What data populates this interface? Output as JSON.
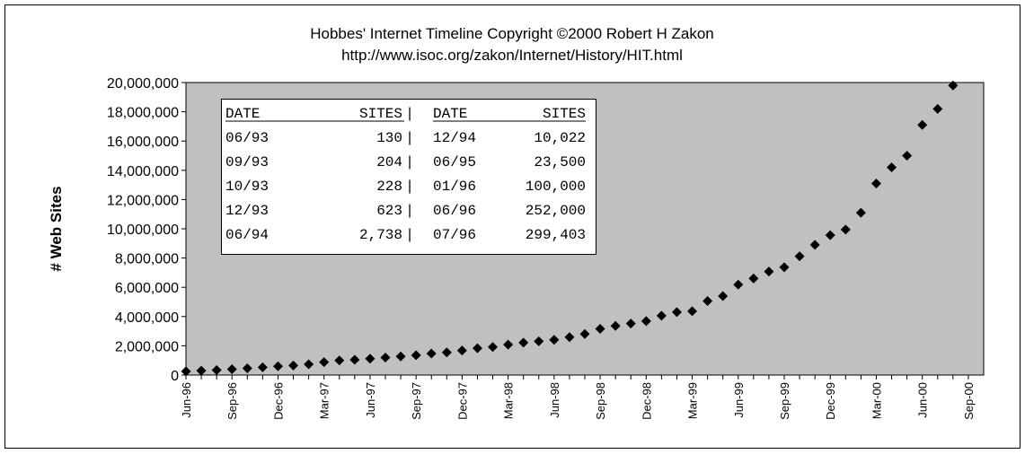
{
  "chart_data": {
    "type": "scatter",
    "title": "Hobbes' Internet Timeline Copyright ©2000 Robert H Zakon",
    "subtitle": "http://www.isoc.org/zakon/Internet/History/HIT.html",
    "y_label": "# Web Sites",
    "categories": [
      "Jun-96",
      null,
      null,
      "Sep-96",
      null,
      null,
      "Dec-96",
      null,
      null,
      "Mar-97",
      null,
      null,
      "Jun-97",
      null,
      null,
      "Sep-97",
      null,
      null,
      "Dec-97",
      null,
      null,
      "Mar-98",
      null,
      null,
      "Jun-98",
      null,
      null,
      "Sep-98",
      null,
      null,
      "Dec-98",
      null,
      null,
      "Mar-99",
      null,
      null,
      "Jun-99",
      null,
      null,
      "Sep-99",
      null,
      null,
      "Dec-99",
      null,
      null,
      "Mar-00",
      null,
      null,
      "Jun-00",
      null,
      null,
      "Sep-00"
    ],
    "values": [
      250000,
      300000,
      340000,
      400000,
      460000,
      530000,
      600000,
      650000,
      740000,
      880000,
      1000000,
      1040000,
      1120000,
      1200000,
      1270000,
      1360000,
      1470000,
      1550000,
      1680000,
      1830000,
      1920000,
      2080000,
      2220000,
      2310000,
      2410000,
      2590000,
      2810000,
      3160000,
      3360000,
      3520000,
      3690000,
      4060000,
      4300000,
      4360000,
      5060000,
      5400000,
      6180000,
      6600000,
      7080000,
      7370000,
      8120000,
      8900000,
      9560000,
      9950000,
      11100000,
      13100000,
      14200000,
      15000000,
      17100000,
      18200000,
      19800000,
      null
    ],
    "color": "#000000",
    "plot_background": "#c0c0c0",
    "ylim": [
      0,
      20000000
    ],
    "yticks": [
      0,
      {
        "value": 2000000,
        "label": "2,000,000"
      },
      {
        "value": 4000000,
        "label": "4,000,000"
      },
      {
        "value": 6000000,
        "label": "6,000,000"
      },
      {
        "value": 8000000,
        "label": "8,000,000"
      },
      {
        "value": 10000000,
        "label": "10,000,000"
      },
      {
        "value": 12000000,
        "label": "12,000,000"
      },
      {
        "value": 14000000,
        "label": "14,000,000"
      },
      {
        "value": 16000000,
        "label": "16,000,000"
      },
      {
        "value": 18000000,
        "label": "18,000,000"
      },
      {
        "value": 20000000,
        "label": "20,000,000"
      }
    ],
    "grid": false
  },
  "table": {
    "separator": "|",
    "columns": [
      "DATE",
      "SITES",
      "DATE",
      "SITES"
    ],
    "rows": [
      [
        "06/93",
        "130",
        "12/94",
        "10,022"
      ],
      [
        "09/93",
        "204",
        "06/95",
        "23,500"
      ],
      [
        "10/93",
        "228",
        "01/96",
        "100,000"
      ],
      [
        "12/93",
        "623",
        "06/96",
        "252,000"
      ],
      [
        "06/94",
        "2,738",
        "07/96",
        "299,403"
      ]
    ]
  }
}
